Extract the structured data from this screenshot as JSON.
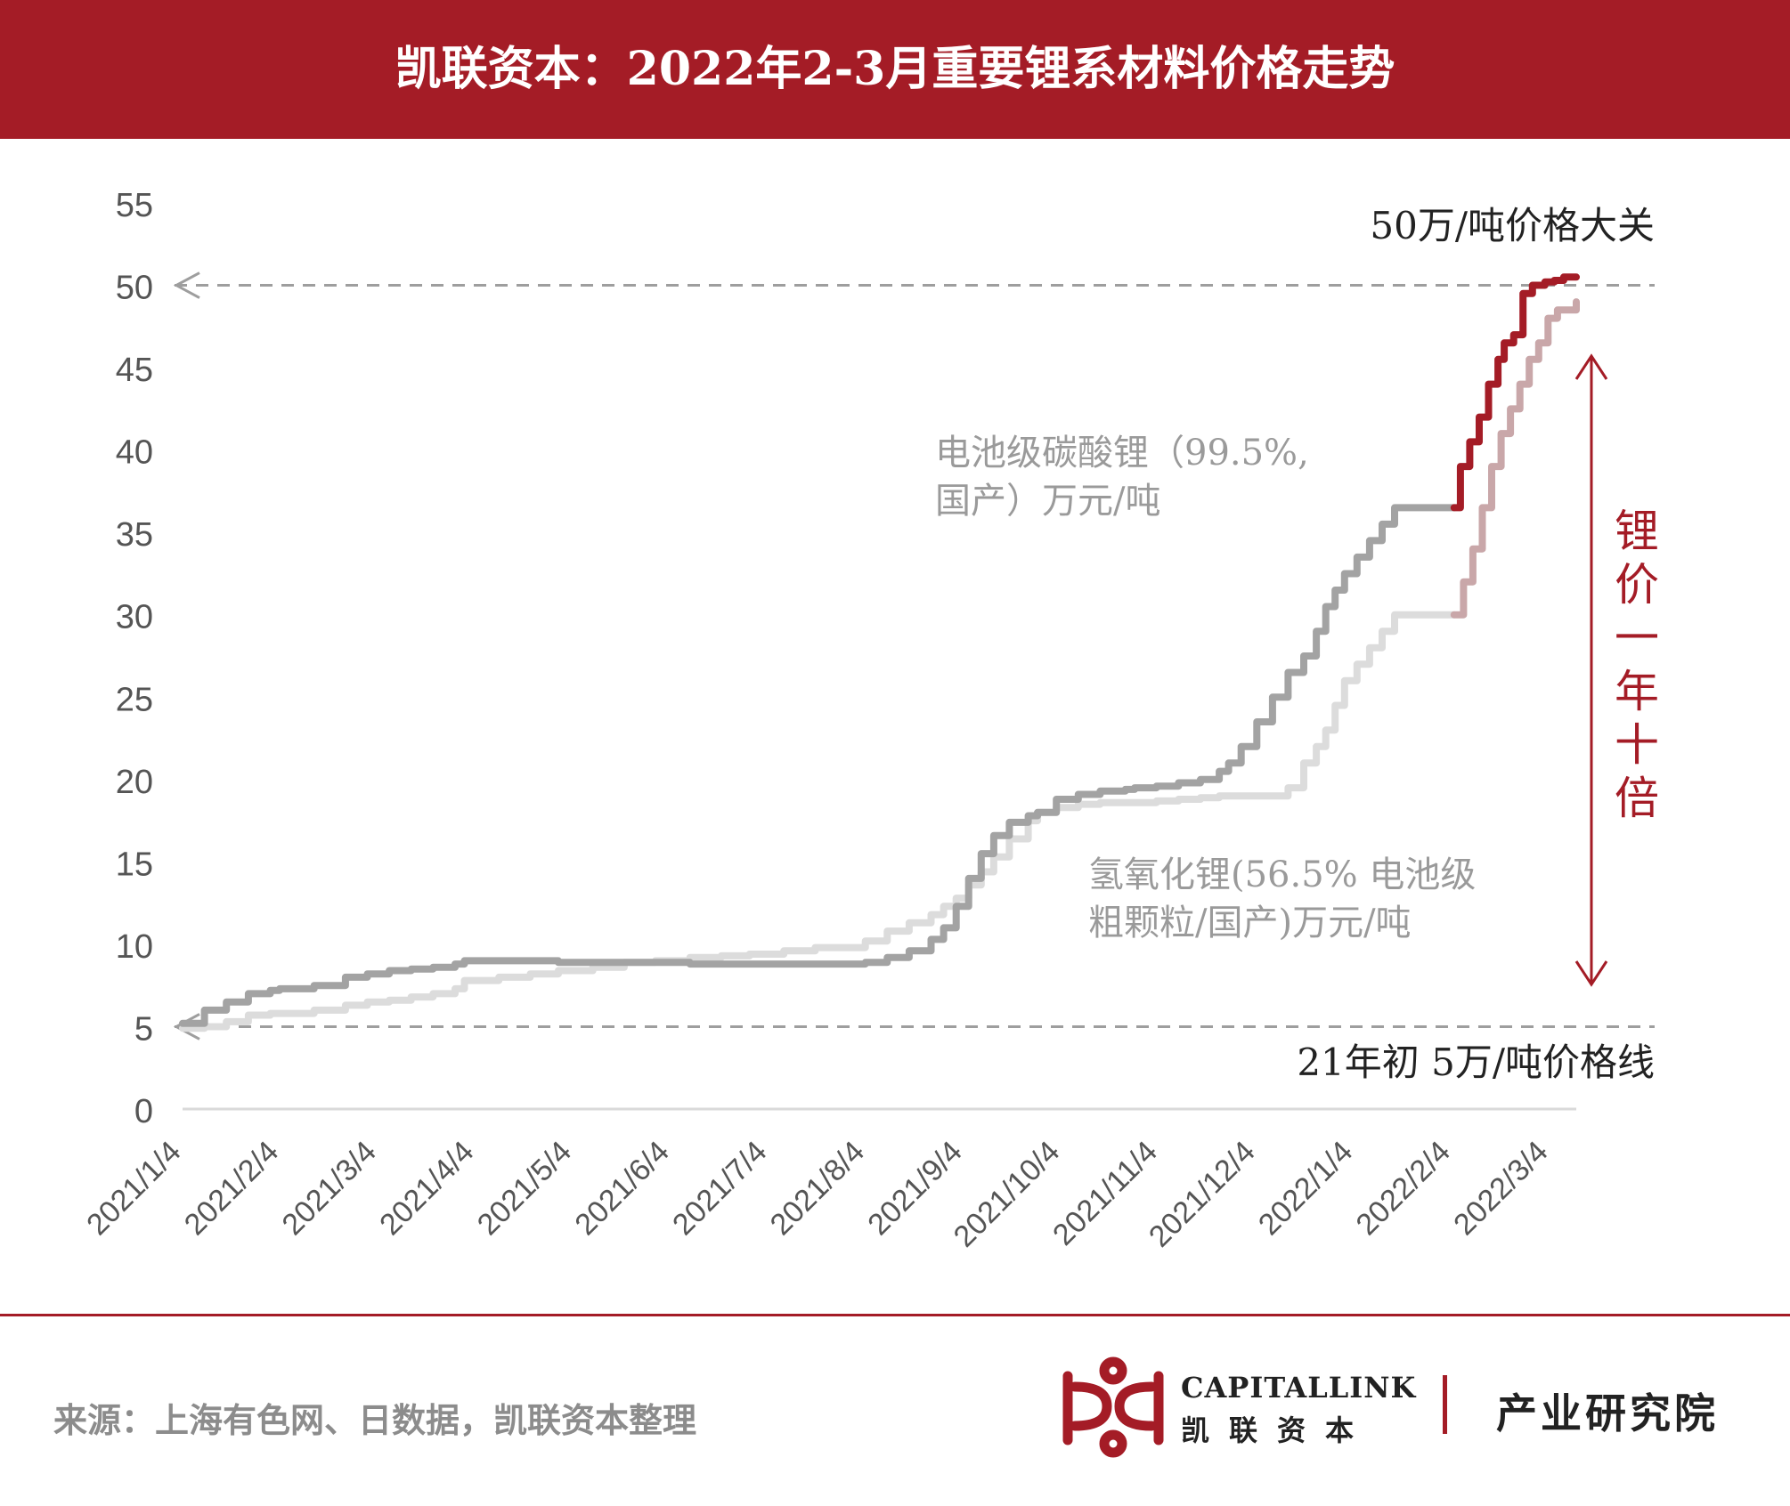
{
  "header": {
    "title": "凯联资本：2022年2-3月重要锂系材料价格走势"
  },
  "footer": {
    "source": "来源：上海有色网、日数据，凯联资本整理",
    "brand_en": "CAPITALLINK",
    "brand_cn": "凯联资本",
    "department": "产业研究院"
  },
  "colors": {
    "brand_red": "#a41c26",
    "carbonate": "#a3a3a3",
    "hydroxide": "#dcdcdc",
    "recent_carbonate": "#a41c26",
    "recent_hydroxide": "#c9a7a9"
  },
  "chart_data": {
    "type": "line",
    "title": "",
    "xlabel": "",
    "ylabel": "",
    "ylim": [
      0,
      55
    ],
    "yticks": [
      "55",
      "50",
      "45",
      "40",
      "35",
      "30",
      "25",
      "20",
      "15",
      "10",
      "5",
      "0"
    ],
    "categories": [
      "2021/1/4",
      "2021/2/4",
      "2021/3/4",
      "2021/4/4",
      "2021/5/4",
      "2021/6/4",
      "2021/7/4",
      "2021/8/4",
      "2021/9/4",
      "2021/10/4",
      "2021/11/4",
      "2021/12/4",
      "2022/1/4",
      "2022/2/4",
      "2022/3/4"
    ],
    "grid": false,
    "series": [
      {
        "name": "电池级碳酸锂（99.5%, 国产）万元/吨",
        "name_line1": "电池级碳酸锂（99.5%,",
        "name_line2": "国产）万元/吨",
        "x": [
          "2021-01-04",
          "2021-01-11",
          "2021-01-18",
          "2021-01-25",
          "2021-02-01",
          "2021-02-04",
          "2021-02-15",
          "2021-02-25",
          "2021-03-04",
          "2021-03-11",
          "2021-03-18",
          "2021-03-25",
          "2021-04-01",
          "2021-04-04",
          "2021-04-15",
          "2021-04-25",
          "2021-05-04",
          "2021-05-15",
          "2021-05-25",
          "2021-06-04",
          "2021-06-15",
          "2021-06-25",
          "2021-07-04",
          "2021-07-15",
          "2021-07-25",
          "2021-08-04",
          "2021-08-10",
          "2021-08-17",
          "2021-08-24",
          "2021-08-31",
          "2021-09-04",
          "2021-09-08",
          "2021-09-12",
          "2021-09-16",
          "2021-09-20",
          "2021-09-25",
          "2021-10-01",
          "2021-10-04",
          "2021-10-10",
          "2021-10-17",
          "2021-10-24",
          "2021-11-01",
          "2021-11-04",
          "2021-11-11",
          "2021-11-18",
          "2021-11-25",
          "2021-12-01",
          "2021-12-04",
          "2021-12-08",
          "2021-12-13",
          "2021-12-18",
          "2021-12-23",
          "2021-12-28",
          "2022-01-01",
          "2022-01-04",
          "2022-01-07",
          "2022-01-10",
          "2022-01-14",
          "2022-01-18",
          "2022-01-22",
          "2022-01-26",
          "2022-01-31",
          "2022-02-04",
          "2022-02-10",
          "2022-02-14"
        ],
        "values": [
          5.2,
          6.0,
          6.5,
          7.0,
          7.2,
          7.3,
          7.5,
          8.0,
          8.2,
          8.4,
          8.5,
          8.6,
          8.8,
          9.0,
          9.0,
          9.0,
          8.9,
          8.9,
          8.9,
          8.9,
          8.8,
          8.8,
          8.8,
          8.8,
          8.8,
          8.8,
          8.9,
          9.2,
          9.6,
          10.3,
          11.0,
          12.3,
          14.0,
          15.5,
          16.6,
          17.4,
          17.8,
          18.0,
          18.8,
          19.1,
          19.3,
          19.4,
          19.5,
          19.6,
          19.8,
          20.0,
          20.5,
          21.0,
          22.0,
          23.5,
          25.0,
          26.5,
          27.5,
          29.0,
          30.5,
          31.5,
          32.5,
          33.5,
          34.5,
          35.5,
          36.5,
          36.5,
          36.5,
          36.5,
          36.5
        ]
      },
      {
        "name": "氢氧化锂(56.5% 电池级粗颗粒/国产)万元/吨",
        "name_line1": "氢氧化锂(56.5% 电池级",
        "name_line2": "粗颗粒/国产)万元/吨",
        "x": [
          "2021-01-04",
          "2021-01-11",
          "2021-01-18",
          "2021-01-25",
          "2021-02-01",
          "2021-02-04",
          "2021-02-15",
          "2021-02-25",
          "2021-03-04",
          "2021-03-11",
          "2021-03-18",
          "2021-03-25",
          "2021-04-01",
          "2021-04-04",
          "2021-04-15",
          "2021-04-25",
          "2021-05-04",
          "2021-05-15",
          "2021-05-25",
          "2021-06-04",
          "2021-06-15",
          "2021-06-25",
          "2021-07-04",
          "2021-07-15",
          "2021-07-25",
          "2021-08-04",
          "2021-08-10",
          "2021-08-17",
          "2021-08-24",
          "2021-08-31",
          "2021-09-04",
          "2021-09-08",
          "2021-09-12",
          "2021-09-16",
          "2021-09-20",
          "2021-09-25",
          "2021-10-01",
          "2021-10-04",
          "2021-10-10",
          "2021-10-17",
          "2021-10-24",
          "2021-11-01",
          "2021-11-04",
          "2021-11-11",
          "2021-11-18",
          "2021-11-25",
          "2021-12-01",
          "2021-12-04",
          "2021-12-08",
          "2021-12-13",
          "2021-12-18",
          "2021-12-23",
          "2021-12-28",
          "2022-01-01",
          "2022-01-04",
          "2022-01-07",
          "2022-01-10",
          "2022-01-14",
          "2022-01-18",
          "2022-01-22",
          "2022-01-26",
          "2022-01-31",
          "2022-02-04",
          "2022-02-10",
          "2022-02-14"
        ],
        "values": [
          4.9,
          5.0,
          5.3,
          5.7,
          5.8,
          5.8,
          6.0,
          6.3,
          6.5,
          6.6,
          6.8,
          7.0,
          7.3,
          7.8,
          8.0,
          8.2,
          8.4,
          8.6,
          8.9,
          9.0,
          9.2,
          9.3,
          9.4,
          9.6,
          9.8,
          9.8,
          10.2,
          10.8,
          11.3,
          11.8,
          12.3,
          12.8,
          13.6,
          14.4,
          15.3,
          16.4,
          17.5,
          18.0,
          18.3,
          18.5,
          18.6,
          18.6,
          18.6,
          18.7,
          18.8,
          18.9,
          19.0,
          19.0,
          19.0,
          19.0,
          19.0,
          19.5,
          21.0,
          22.0,
          23.0,
          24.5,
          26.0,
          27.0,
          28.0,
          29.0,
          30.0,
          30.0,
          30.0,
          30.0,
          30.0
        ]
      },
      {
        "name": "",
        "x": [
          "2022-02-14",
          "2022-02-16",
          "2022-02-19",
          "2022-02-22",
          "2022-02-25",
          "2022-02-28",
          "2022-03-02",
          "2022-03-05",
          "2022-03-08",
          "2022-03-11",
          "2022-03-15",
          "2022-03-18",
          "2022-03-21",
          "2022-03-25"
        ],
        "values": [
          36.5,
          39.0,
          40.5,
          42.0,
          44.0,
          45.5,
          46.5,
          47.0,
          49.5,
          50.0,
          50.2,
          50.3,
          50.5,
          50.5
        ]
      },
      {
        "name": "",
        "x": [
          "2022-02-14",
          "2022-02-17",
          "2022-02-20",
          "2022-02-23",
          "2022-02-26",
          "2022-03-01",
          "2022-03-04",
          "2022-03-07",
          "2022-03-10",
          "2022-03-13",
          "2022-03-16",
          "2022-03-19",
          "2022-03-22",
          "2022-03-25"
        ],
        "values": [
          30.0,
          32.0,
          34.0,
          36.5,
          39.0,
          41.0,
          42.5,
          44.0,
          45.5,
          46.5,
          48.0,
          48.5,
          48.5,
          49.0
        ]
      }
    ],
    "reference_lines": [
      {
        "value": 50,
        "label": "50万/吨价格大关"
      },
      {
        "value": 5,
        "label": "21年初 5万/吨价格线"
      }
    ],
    "annotation": {
      "text": "锂价一年十倍",
      "chars": [
        "锂",
        "价",
        "一",
        "年",
        "十",
        "倍"
      ]
    }
  }
}
